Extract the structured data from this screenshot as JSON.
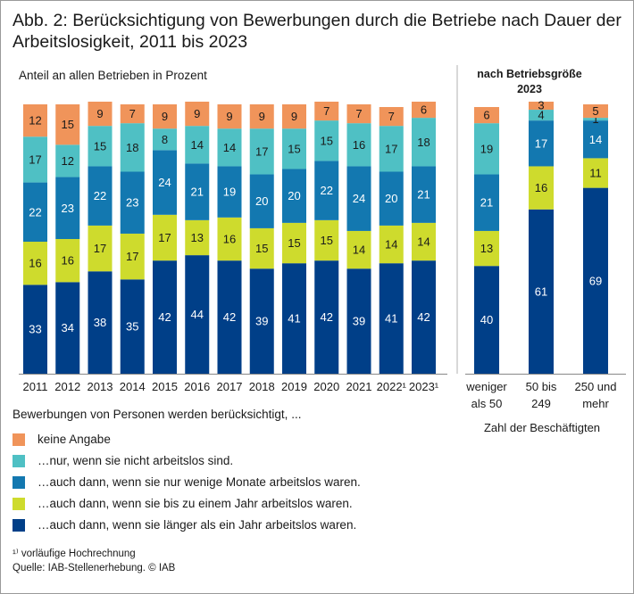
{
  "chart_data": {
    "type": "bar",
    "stacked": true,
    "title": "Abb. 2: Berücksichtigung von Bewerbungen durch die Betriebe nach Dauer der Arbeitslosigkeit, 2011 bis 2023",
    "ylabel": "Anteil an allen Betrieben in Prozent",
    "ylim": [
      0,
      100
    ],
    "colors": {
      "keine_angabe": "#f0945a",
      "nicht_arbeitslos": "#4fc0c4",
      "wenige_monate": "#1378b0",
      "bis_ein_jahr": "#cedb2d",
      "laenger_ein_jahr": "#003f88"
    },
    "groups": [
      {
        "name": "years",
        "categories": [
          "2011",
          "2012",
          "2013",
          "2014",
          "2015",
          "2016",
          "2017",
          "2018",
          "2019",
          "2020",
          "2021",
          "2022¹",
          "2023¹"
        ],
        "series": [
          {
            "key": "laenger_ein_jahr",
            "values": [
              33,
              34,
              38,
              35,
              42,
              44,
              42,
              39,
              41,
              42,
              39,
              41,
              42
            ]
          },
          {
            "key": "bis_ein_jahr",
            "values": [
              16,
              16,
              17,
              17,
              17,
              13,
              16,
              15,
              15,
              15,
              14,
              14,
              14
            ]
          },
          {
            "key": "wenige_monate",
            "values": [
              22,
              23,
              22,
              23,
              24,
              21,
              19,
              20,
              20,
              22,
              24,
              20,
              21
            ]
          },
          {
            "key": "nicht_arbeitslos",
            "values": [
              17,
              12,
              15,
              18,
              8,
              14,
              14,
              17,
              15,
              15,
              16,
              17,
              18
            ]
          },
          {
            "key": "keine_angabe",
            "values": [
              12,
              15,
              9,
              7,
              9,
              9,
              9,
              9,
              9,
              7,
              7,
              7,
              6
            ]
          }
        ]
      },
      {
        "name": "size",
        "heading": "nach Betriebsgröße 2023",
        "categories": [
          "weniger als 50",
          "50 bis 249",
          "250 und mehr"
        ],
        "category_lines": [
          [
            "weniger",
            "als 50"
          ],
          [
            "50 bis",
            "249"
          ],
          [
            "250 und",
            "mehr"
          ]
        ],
        "xlabel": "Zahl der Beschäftigten",
        "series": [
          {
            "key": "laenger_ein_jahr",
            "values": [
              40,
              61,
              69
            ]
          },
          {
            "key": "bis_ein_jahr",
            "values": [
              13,
              16,
              11
            ]
          },
          {
            "key": "wenige_monate",
            "values": [
              21,
              17,
              14
            ]
          },
          {
            "key": "nicht_arbeitslos",
            "values": [
              19,
              4,
              1
            ]
          },
          {
            "key": "keine_angabe",
            "values": [
              6,
              3,
              5
            ]
          }
        ]
      }
    ],
    "legend": {
      "title": "Bewerbungen von Personen werden berücksichtigt, ...",
      "items": [
        {
          "key": "keine_angabe",
          "label": "keine Angabe"
        },
        {
          "key": "nicht_arbeitslos",
          "label": "…nur, wenn sie nicht arbeitslos sind."
        },
        {
          "key": "wenige_monate",
          "label": "…auch dann, wenn sie nur wenige Monate arbeitslos waren."
        },
        {
          "key": "bis_ein_jahr",
          "label": "…auch dann, wenn sie bis zu einem Jahr arbeitslos waren."
        },
        {
          "key": "laenger_ein_jahr",
          "label": "…auch dann, wenn sie länger als ein Jahr arbeitslos waren."
        }
      ]
    }
  },
  "footnote": "¹⁾ vorläufige Hochrechnung",
  "source": "Quelle: IAB-Stellenerhebung. © IAB"
}
